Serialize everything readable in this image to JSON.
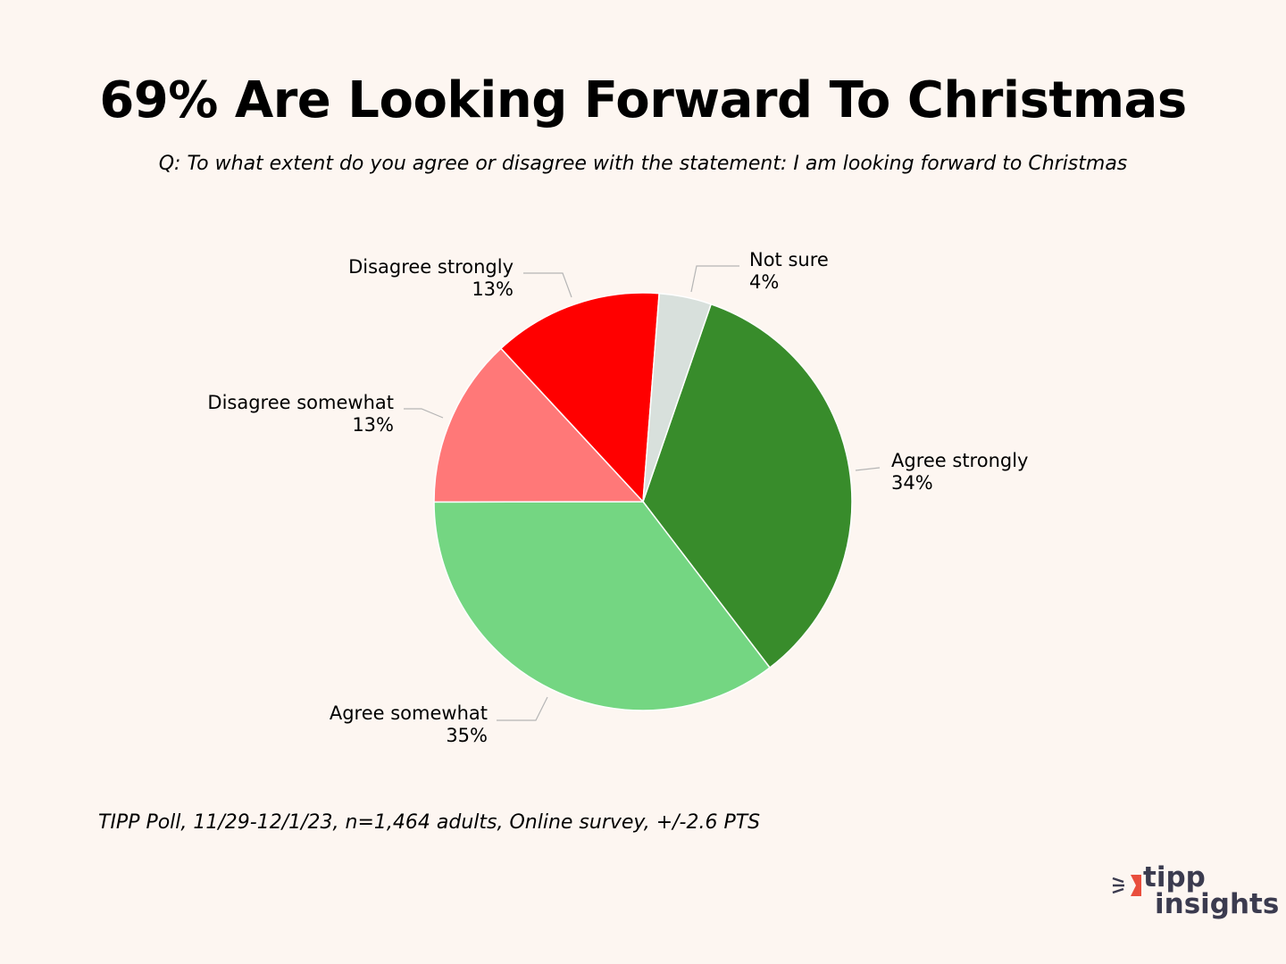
{
  "title": "69% Are Looking Forward To Christmas",
  "subtitle": "Q: To what extent do you agree or disagree with the statement: I am looking forward to Christmas",
  "source": "TIPP Poll, 11/29-12/1/23, n=1,464 adults, Online survey, +/-2.6 PTS",
  "logo": {
    "line1": "tipp",
    "line2": "insights",
    "accent": "#e94e3d",
    "text_color": "#3b3b4f"
  },
  "chart_data": {
    "type": "pie",
    "title": "69% Are Looking Forward To Christmas",
    "slices": [
      {
        "label": "Agree strongly",
        "value": 34,
        "display": "34%",
        "color": "#388c2b"
      },
      {
        "label": "Agree somewhat",
        "value": 35,
        "display": "35%",
        "color": "#74d682"
      },
      {
        "label": "Disagree somewhat",
        "value": 13,
        "display": "13%",
        "color": "#ff7878"
      },
      {
        "label": "Disagree strongly",
        "value": 13,
        "display": "13%",
        "color": "#ff0000"
      },
      {
        "label": "Not sure",
        "value": 4,
        "display": "4%",
        "color": "#d8e0dc"
      }
    ]
  }
}
